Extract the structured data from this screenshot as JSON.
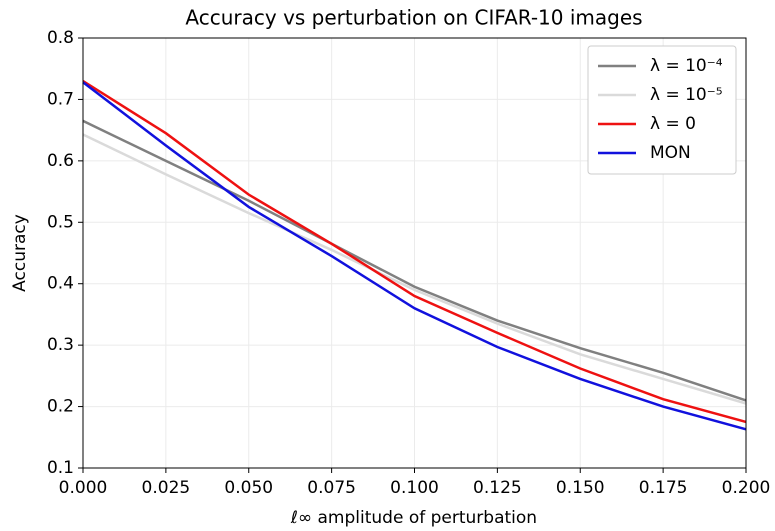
{
  "chart_data": {
    "type": "line",
    "title": "Accuracy vs perturbation on CIFAR-10 images",
    "xlabel": "ℓ∞ amplitude of perturbation",
    "ylabel": "Accuracy",
    "x": [
      0,
      0.025,
      0.05,
      0.075,
      0.1,
      0.125,
      0.15,
      0.175,
      0.2
    ],
    "series": [
      {
        "name": "λ = 10⁻⁴",
        "color": "#808080",
        "values": [
          0.665,
          0.6,
          0.535,
          0.465,
          0.395,
          0.34,
          0.295,
          0.255,
          0.21
        ]
      },
      {
        "name": "λ = 10⁻⁵",
        "color": "#dadada",
        "values": [
          0.643,
          0.578,
          0.515,
          0.455,
          0.39,
          0.335,
          0.285,
          0.245,
          0.205
        ]
      },
      {
        "name": "λ = 0",
        "color": "#ee1111",
        "values": [
          0.73,
          0.645,
          0.545,
          0.465,
          0.38,
          0.32,
          0.262,
          0.212,
          0.175
        ]
      },
      {
        "name": "MON",
        "color": "#1111dd",
        "values": [
          0.728,
          0.625,
          0.525,
          0.445,
          0.36,
          0.297,
          0.245,
          0.2,
          0.163
        ]
      }
    ],
    "xlim": [
      0,
      0.2
    ],
    "ylim": [
      0.1,
      0.8
    ],
    "xticks": [
      {
        "value": 0,
        "label": "0.000"
      },
      {
        "value": 0.025,
        "label": "0.025"
      },
      {
        "value": 0.05,
        "label": "0.050"
      },
      {
        "value": 0.075,
        "label": "0.075"
      },
      {
        "value": 0.1,
        "label": "0.100"
      },
      {
        "value": 0.125,
        "label": "0.125"
      },
      {
        "value": 0.15,
        "label": "0.150"
      },
      {
        "value": 0.175,
        "label": "0.175"
      },
      {
        "value": 0.2,
        "label": "0.200"
      }
    ],
    "yticks": [
      0.1,
      0.2,
      0.3,
      0.4,
      0.5,
      0.6,
      0.7,
      0.8
    ],
    "grid": true,
    "legend": "upper right"
  }
}
